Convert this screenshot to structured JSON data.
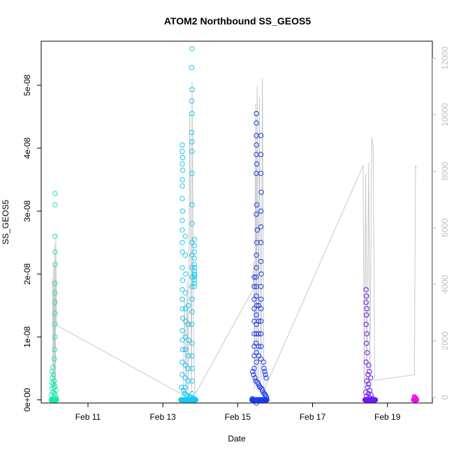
{
  "chart_data": {
    "type": "scatter",
    "title": "ATOM2 Northbound SS_GEOS5",
    "xlabel": "Date",
    "ylabel": "SS_GEOS5",
    "x_tick_labels": [
      "Feb 11",
      "Feb 13",
      "Feb 15",
      "Feb 17",
      "Feb 19"
    ],
    "x_tick_days": [
      11,
      13,
      15,
      17,
      19
    ],
    "xlim_days": [
      9.75,
      20.2
    ],
    "ylim": [
      -5e-10,
      5.7e-08
    ],
    "y_ticks": [
      0,
      1e-08,
      2e-08,
      3e-08,
      4e-08,
      5e-08
    ],
    "y_tick_labels": [
      "0e+00",
      "1e-08",
      "2e-08",
      "3e-08",
      "4e-08",
      "5e-08"
    ],
    "y2_ticks": [
      0,
      2000,
      4000,
      6000,
      8000,
      10000,
      12000
    ],
    "y2_tick_labels": [
      "0",
      "2000",
      "4000",
      "6000",
      "8000",
      "10000",
      "12000"
    ],
    "y2lim": [
      -200,
      12600
    ],
    "grid": false,
    "colors": {
      "altitude_line": "#c8c8c8",
      "right_axis": "#c0c0c0",
      "flight1": "#1de8b0",
      "flight2": "#18c8f0",
      "flight3": "#1a3cf0",
      "flight4": "#6a1cf0",
      "flight5": "#ee10f0"
    },
    "altitude_series": {
      "name": "altitude",
      "points": [
        [
          10.05,
          4200
        ],
        [
          10.07,
          100
        ],
        [
          10.08,
          4700
        ],
        [
          10.1,
          50
        ],
        [
          10.11,
          5400
        ],
        [
          10.13,
          100
        ],
        [
          10.14,
          5750
        ],
        [
          10.16,
          2550
        ],
        [
          13.55,
          80
        ],
        [
          13.58,
          3500
        ],
        [
          13.62,
          100
        ],
        [
          13.65,
          4100
        ],
        [
          13.68,
          200
        ],
        [
          13.72,
          10100
        ],
        [
          13.75,
          3200
        ],
        [
          13.77,
          100
        ],
        [
          13.78,
          11200
        ],
        [
          13.82,
          2500
        ],
        [
          13.85,
          300
        ],
        [
          13.88,
          150
        ],
        [
          15.4,
          3800
        ],
        [
          15.43,
          4800
        ],
        [
          15.45,
          300
        ],
        [
          15.48,
          10400
        ],
        [
          15.5,
          500
        ],
        [
          15.52,
          11000
        ],
        [
          15.55,
          200
        ],
        [
          15.58,
          10600
        ],
        [
          15.62,
          300
        ],
        [
          15.66,
          11300
        ],
        [
          15.7,
          200
        ],
        [
          15.75,
          400
        ],
        [
          18.35,
          8200
        ],
        [
          18.38,
          200
        ],
        [
          18.42,
          7900
        ],
        [
          18.45,
          300
        ],
        [
          18.5,
          8300
        ],
        [
          18.53,
          400
        ],
        [
          18.58,
          9200
        ],
        [
          18.62,
          8900
        ],
        [
          18.66,
          600
        ],
        [
          19.72,
          800
        ],
        [
          19.75,
          8200
        ],
        [
          19.77,
          8100
        ]
      ]
    },
    "series": [
      {
        "flight": 1,
        "x_range": [
          10.02,
          10.16
        ],
        "points": [
          [
            10.12,
            3.28e-08
          ],
          [
            10.12,
            3.1e-08
          ],
          [
            10.12,
            2.6e-08
          ],
          [
            10.12,
            2.35e-08
          ],
          [
            10.12,
            2.15e-08
          ],
          [
            10.12,
            1.85e-08
          ],
          [
            10.12,
            1.7e-08
          ],
          [
            10.12,
            1.55e-08
          ],
          [
            10.12,
            1.38e-08
          ],
          [
            10.12,
            1.2e-08
          ],
          [
            10.12,
            1e-08
          ],
          [
            10.11,
            8e-09
          ],
          [
            10.1,
            6.5e-09
          ],
          [
            10.06,
            5.2e-09
          ],
          [
            10.04,
            4.5e-09
          ],
          [
            10.08,
            4e-09
          ],
          [
            10.05,
            3.5e-09
          ],
          [
            10.1,
            3e-09
          ],
          [
            10.03,
            2.8e-09
          ],
          [
            10.07,
            2.5e-09
          ],
          [
            10.12,
            2.2e-09
          ],
          [
            10.09,
            2e-09
          ],
          [
            10.04,
            1.8e-09
          ],
          [
            10.14,
            1.5e-09
          ],
          [
            10.06,
            1.2e-09
          ],
          [
            10.11,
            1e-09
          ],
          [
            10.02,
            8e-10
          ],
          [
            10.13,
            6e-10
          ],
          [
            10.08,
            4e-10
          ],
          [
            10.15,
            2e-10
          ],
          [
            10.03,
            1e-10
          ],
          [
            10.1,
            0.0
          ],
          [
            10.05,
            0.0
          ],
          [
            10.12,
            0.0
          ],
          [
            10.16,
            0.0
          ]
        ]
      },
      {
        "flight": 2,
        "x_range": [
          13.48,
          13.88
        ],
        "points": [
          [
            13.78,
            5.58e-08
          ],
          [
            13.77,
            5.28e-08
          ],
          [
            13.78,
            4.93e-08
          ],
          [
            13.77,
            4.75e-08
          ],
          [
            13.78,
            4.55e-08
          ],
          [
            13.77,
            4.25e-08
          ],
          [
            13.78,
            4.1e-08
          ],
          [
            13.78,
            3.95e-08
          ],
          [
            13.78,
            3.6e-08
          ],
          [
            13.78,
            3.1e-08
          ],
          [
            13.78,
            2.8e-08
          ],
          [
            13.78,
            2.5e-08
          ],
          [
            13.78,
            2.3e-08
          ],
          [
            13.78,
            2.1e-08
          ],
          [
            13.78,
            1.95e-08
          ],
          [
            13.78,
            1.8e-08
          ],
          [
            13.78,
            1.6e-08
          ],
          [
            13.78,
            1.4e-08
          ],
          [
            13.77,
            1.2e-08
          ],
          [
            13.78,
            9e-09
          ],
          [
            13.78,
            7e-09
          ],
          [
            13.78,
            5e-09
          ],
          [
            13.78,
            3e-09
          ],
          [
            13.78,
            1e-09
          ],
          [
            13.52,
            4.05e-08
          ],
          [
            13.52,
            3.95e-08
          ],
          [
            13.53,
            3.85e-08
          ],
          [
            13.52,
            3.75e-08
          ],
          [
            13.53,
            3.65e-08
          ],
          [
            13.52,
            3.5e-08
          ],
          [
            13.52,
            3.4e-08
          ],
          [
            13.52,
            3.2e-08
          ],
          [
            13.53,
            3e-08
          ],
          [
            13.52,
            2.85e-08
          ],
          [
            13.52,
            2.7e-08
          ],
          [
            13.52,
            2.5e-08
          ],
          [
            13.52,
            2.35e-08
          ],
          [
            13.52,
            2.1e-08
          ],
          [
            13.53,
            1.9e-08
          ],
          [
            13.52,
            1.75e-08
          ],
          [
            13.52,
            1.6e-08
          ],
          [
            13.52,
            1.45e-08
          ],
          [
            13.53,
            1.3e-08
          ],
          [
            13.52,
            1.1e-08
          ],
          [
            13.52,
            9.5e-09
          ],
          [
            13.53,
            8e-09
          ],
          [
            13.52,
            6e-09
          ],
          [
            13.52,
            4e-09
          ],
          [
            13.6,
            2.6e-08
          ],
          [
            13.6,
            2.3e-08
          ],
          [
            13.61,
            2e-08
          ],
          [
            13.6,
            1.7e-08
          ],
          [
            13.6,
            1.45e-08
          ],
          [
            13.61,
            1.25e-08
          ],
          [
            13.6,
            1e-08
          ],
          [
            13.6,
            8e-09
          ],
          [
            13.6,
            5.5e-09
          ],
          [
            13.6,
            3.5e-09
          ],
          [
            13.6,
            2e-09
          ],
          [
            13.68,
            1.5e-08
          ],
          [
            13.68,
            1.2e-08
          ],
          [
            13.69,
            9.5e-09
          ],
          [
            13.68,
            7e-09
          ],
          [
            13.68,
            5e-09
          ],
          [
            13.68,
            3e-09
          ],
          [
            13.84,
            2.55e-08
          ],
          [
            13.84,
            2.45e-08
          ],
          [
            13.84,
            2.35e-08
          ],
          [
            13.84,
            2.25e-08
          ],
          [
            13.84,
            2.15e-08
          ],
          [
            13.84,
            2.05e-08
          ],
          [
            13.84,
            2e-08
          ],
          [
            13.84,
            1.95e-08
          ],
          [
            13.84,
            1.9e-08
          ],
          [
            13.84,
            1.85e-08
          ],
          [
            13.84,
            1.8e-08
          ],
          [
            13.85,
            2.1e-08
          ],
          [
            13.85,
            1.98e-08
          ],
          [
            13.5,
            2e-09
          ],
          [
            13.55,
            1.5e-09
          ],
          [
            13.58,
            1e-09
          ],
          [
            13.63,
            8e-10
          ],
          [
            13.66,
            6e-10
          ],
          [
            13.71,
            5e-10
          ],
          [
            13.74,
            4e-10
          ],
          [
            13.8,
            3e-10
          ],
          [
            13.82,
            2e-10
          ],
          [
            13.86,
            1e-10
          ],
          [
            13.5,
            0.0
          ],
          [
            13.6,
            0.0
          ],
          [
            13.7,
            0.0
          ],
          [
            13.8,
            0.0
          ],
          [
            13.88,
            0.0
          ]
        ]
      },
      {
        "flight": 3,
        "x_range": [
          15.38,
          15.78
        ],
        "points": [
          [
            15.5,
            4.55e-08
          ],
          [
            15.5,
            4.4e-08
          ],
          [
            15.5,
            4.2e-08
          ],
          [
            15.5,
            4.05e-08
          ],
          [
            15.5,
            3.9e-08
          ],
          [
            15.51,
            3.75e-08
          ],
          [
            15.5,
            3.6e-08
          ],
          [
            15.51,
            3.1e-08
          ],
          [
            15.5,
            2.95e-08
          ],
          [
            15.52,
            2.7e-08
          ],
          [
            15.51,
            2.5e-08
          ],
          [
            15.5,
            2.3e-08
          ],
          [
            15.5,
            2.1e-08
          ],
          [
            15.49,
            1.95e-08
          ],
          [
            15.5,
            1.8e-08
          ],
          [
            15.5,
            1.65e-08
          ],
          [
            15.51,
            1.5e-08
          ],
          [
            15.5,
            1.35e-08
          ],
          [
            15.5,
            1.2e-08
          ],
          [
            15.5,
            1.05e-08
          ],
          [
            15.49,
            9e-09
          ],
          [
            15.5,
            7.5e-09
          ],
          [
            15.5,
            6e-09
          ],
          [
            15.62,
            4.2e-08
          ],
          [
            15.62,
            3.9e-08
          ],
          [
            15.62,
            3.6e-08
          ],
          [
            15.63,
            3.3e-08
          ],
          [
            15.62,
            3e-08
          ],
          [
            15.62,
            2.75e-08
          ],
          [
            15.62,
            2.5e-08
          ],
          [
            15.62,
            2.2e-08
          ],
          [
            15.63,
            2e-08
          ],
          [
            15.62,
            1.8e-08
          ],
          [
            15.62,
            1.6e-08
          ],
          [
            15.62,
            1.45e-08
          ],
          [
            15.62,
            1.25e-08
          ],
          [
            15.62,
            1.05e-08
          ],
          [
            15.62,
            8.5e-09
          ],
          [
            15.62,
            6.5e-09
          ],
          [
            15.44,
            1.95e-08
          ],
          [
            15.44,
            1.8e-08
          ],
          [
            15.44,
            1.6e-08
          ],
          [
            15.44,
            1.45e-08
          ],
          [
            15.44,
            1.25e-08
          ],
          [
            15.44,
            1.05e-08
          ],
          [
            15.44,
            8.5e-09
          ],
          [
            15.44,
            7e-09
          ],
          [
            15.44,
            5e-09
          ],
          [
            15.56,
            1.5e-08
          ],
          [
            15.56,
            1.25e-08
          ],
          [
            15.56,
            1.05e-08
          ],
          [
            15.56,
            8.5e-09
          ],
          [
            15.56,
            7e-09
          ],
          [
            15.69,
            6e-09
          ],
          [
            15.7,
            5e-09
          ],
          [
            15.72,
            4.5e-09
          ],
          [
            15.74,
            4e-09
          ],
          [
            15.76,
            3.5e-09
          ],
          [
            15.4,
            4.5e-09
          ],
          [
            15.42,
            4e-09
          ],
          [
            15.46,
            3.5e-09
          ],
          [
            15.48,
            3e-09
          ],
          [
            15.53,
            2.8e-09
          ],
          [
            15.55,
            2.5e-09
          ],
          [
            15.58,
            2.2e-09
          ],
          [
            15.6,
            2e-09
          ],
          [
            15.64,
            1.8e-09
          ],
          [
            15.66,
            1.5e-09
          ],
          [
            15.68,
            1.2e-09
          ],
          [
            15.71,
            1e-09
          ],
          [
            15.73,
            8e-10
          ],
          [
            15.75,
            6e-10
          ],
          [
            15.77,
            4e-10
          ],
          [
            15.39,
            2e-10
          ],
          [
            15.41,
            0.0
          ],
          [
            15.47,
            0.0
          ],
          [
            15.52,
            0.0
          ],
          [
            15.57,
            0.0
          ],
          [
            15.61,
            0.0
          ],
          [
            15.65,
            0.0
          ],
          [
            15.7,
            0.0
          ],
          [
            15.78,
            0.0
          ],
          [
            15.5,
            -5e-10
          ]
        ]
      },
      {
        "flight": 4,
        "x_range": [
          18.4,
          18.68
        ],
        "points": [
          [
            18.43,
            1.75e-08
          ],
          [
            18.44,
            1.65e-08
          ],
          [
            18.43,
            1.55e-08
          ],
          [
            18.45,
            1.45e-08
          ],
          [
            18.44,
            1.35e-08
          ],
          [
            18.43,
            1.2e-08
          ],
          [
            18.45,
            1.05e-08
          ],
          [
            18.44,
            9e-09
          ],
          [
            18.46,
            7.5e-09
          ],
          [
            18.43,
            6e-09
          ],
          [
            18.5,
            5.5e-09
          ],
          [
            18.52,
            4.5e-09
          ],
          [
            18.48,
            4e-09
          ],
          [
            18.55,
            3.5e-09
          ],
          [
            18.45,
            3e-09
          ],
          [
            18.5,
            2.5e-09
          ],
          [
            18.47,
            2e-09
          ],
          [
            18.53,
            1.5e-09
          ],
          [
            18.42,
            1.2e-09
          ],
          [
            18.49,
            1e-09
          ],
          [
            18.56,
            8e-10
          ],
          [
            18.44,
            6e-10
          ],
          [
            18.51,
            4e-10
          ],
          [
            18.6,
            2e-10
          ],
          [
            18.41,
            0.0
          ],
          [
            18.46,
            0.0
          ],
          [
            18.5,
            0.0
          ],
          [
            18.54,
            0.0
          ],
          [
            18.58,
            0.0
          ],
          [
            18.62,
            0.0
          ],
          [
            18.66,
            0.0
          ]
        ]
      },
      {
        "flight": 5,
        "x_range": [
          19.7,
          19.78
        ],
        "points": [
          [
            19.72,
            5e-10
          ],
          [
            19.73,
            4e-10
          ],
          [
            19.75,
            3e-10
          ],
          [
            19.76,
            2e-10
          ],
          [
            19.74,
            1e-10
          ],
          [
            19.71,
            0.0
          ],
          [
            19.77,
            0.0
          ]
        ]
      }
    ]
  }
}
